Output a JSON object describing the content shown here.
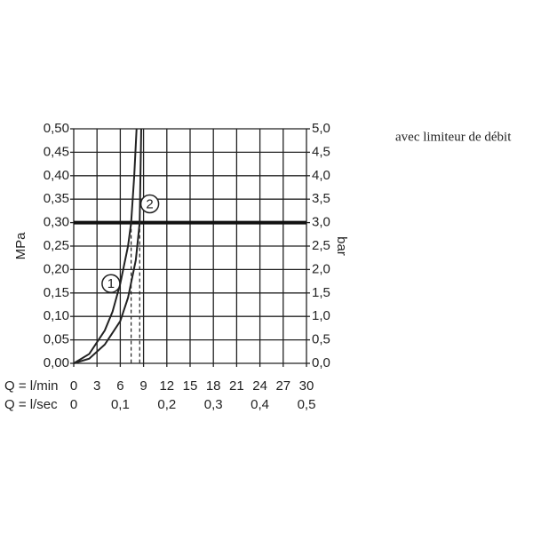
{
  "chart_data": {
    "type": "line",
    "annotation": "avec limiteur de débit",
    "y_label": "MPa",
    "y2_label": "bar",
    "x_label": "Q = l/min",
    "x2_label": "Q = l/sec",
    "xlim": [
      0,
      30
    ],
    "xticks": [
      0,
      3,
      6,
      9,
      12,
      15,
      18,
      21,
      24,
      27,
      30
    ],
    "x2lim": [
      0,
      0.5
    ],
    "x2ticks": [
      0,
      {
        "value": 0.1,
        "label": "0,1"
      },
      {
        "value": 0.2,
        "label": "0,2"
      },
      {
        "value": 0.3,
        "label": "0,3"
      },
      {
        "value": 0.4,
        "label": "0,4"
      },
      {
        "value": 0.5,
        "label": "0,5"
      }
    ],
    "ylim": [
      0,
      0.5
    ],
    "yticks": [
      {
        "value": 0,
        "label": "0,00"
      },
      {
        "value": 0.05,
        "label": "0,05"
      },
      {
        "value": 0.1,
        "label": "0,10"
      },
      {
        "value": 0.15,
        "label": "0,15"
      },
      {
        "value": 0.2,
        "label": "0,20"
      },
      {
        "value": 0.25,
        "label": "0,25"
      },
      {
        "value": 0.3,
        "label": "0,30"
      },
      {
        "value": 0.35,
        "label": "0,35"
      },
      {
        "value": 0.4,
        "label": "0,40"
      },
      {
        "value": 0.45,
        "label": "0,45"
      },
      {
        "value": 0.5,
        "label": "0,50"
      }
    ],
    "y2lim": [
      0,
      5
    ],
    "y2ticks": [
      {
        "value": 0,
        "label": "0,0"
      },
      {
        "value": 0.5,
        "label": "0,5"
      },
      {
        "value": 1,
        "label": "1,0"
      },
      {
        "value": 1.5,
        "label": "1,5"
      },
      {
        "value": 2,
        "label": "2,0"
      },
      {
        "value": 2.5,
        "label": "2,5"
      },
      {
        "value": 3,
        "label": "3,0"
      },
      {
        "value": 3.5,
        "label": "3,5"
      },
      {
        "value": 4,
        "label": "4,0"
      },
      {
        "value": 4.5,
        "label": "4,5"
      },
      {
        "value": 5,
        "label": "5,0"
      }
    ],
    "grid": true,
    "hline": 0.3,
    "vlines": [
      7.4,
      8.5
    ],
    "series": [
      {
        "name": "1",
        "color": "#222222",
        "x": [
          0,
          2,
          4,
          5,
          6,
          7,
          7.4,
          7.8,
          8.1
        ],
        "values": [
          0,
          0.02,
          0.07,
          0.11,
          0.17,
          0.25,
          0.3,
          0.4,
          0.5
        ],
        "label_at": [
          4.8,
          0.17
        ]
      },
      {
        "name": "2",
        "color": "#222222",
        "x": [
          0,
          2,
          4,
          6,
          7,
          8,
          8.5,
          8.6,
          8.7
        ],
        "values": [
          0,
          0.01,
          0.04,
          0.09,
          0.14,
          0.22,
          0.3,
          0.4,
          0.5
        ],
        "label_at": [
          9.8,
          0.34
        ]
      }
    ]
  }
}
